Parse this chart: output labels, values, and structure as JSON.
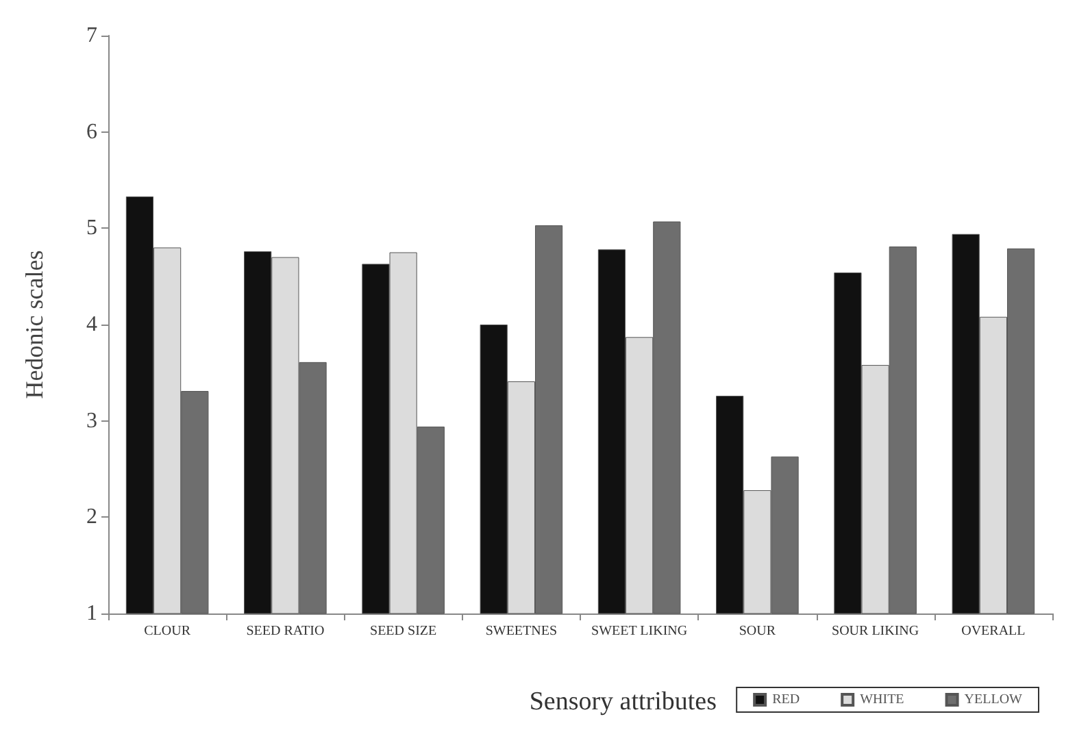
{
  "chart_data": {
    "type": "bar",
    "xlabel": "Sensory attributes",
    "ylabel": "Hedonic scales",
    "categories": [
      "CLOUR",
      "SEED RATIO",
      "SEED SIZE",
      "SWEETNES",
      "SWEET LIKING",
      "SOUR",
      "SOUR LIKING",
      "OVERALL"
    ],
    "series": [
      {
        "name": "RED",
        "color": "#111111",
        "values": [
          5.33,
          4.76,
          4.63,
          4.0,
          4.78,
          3.26,
          4.54,
          4.94
        ]
      },
      {
        "name": "WHITE",
        "color": "#dcdcdc",
        "values": [
          4.8,
          4.7,
          4.75,
          3.41,
          3.87,
          2.28,
          3.58,
          4.08
        ]
      },
      {
        "name": "YELLOW",
        "color": "#6e6e6e",
        "values": [
          3.31,
          3.61,
          2.94,
          5.03,
          5.07,
          2.63,
          4.81,
          4.79
        ]
      }
    ],
    "ylim": [
      1,
      7
    ],
    "yticks": [
      1,
      2,
      3,
      4,
      5,
      6,
      7
    ],
    "grid": false,
    "legend": "bottom right"
  }
}
